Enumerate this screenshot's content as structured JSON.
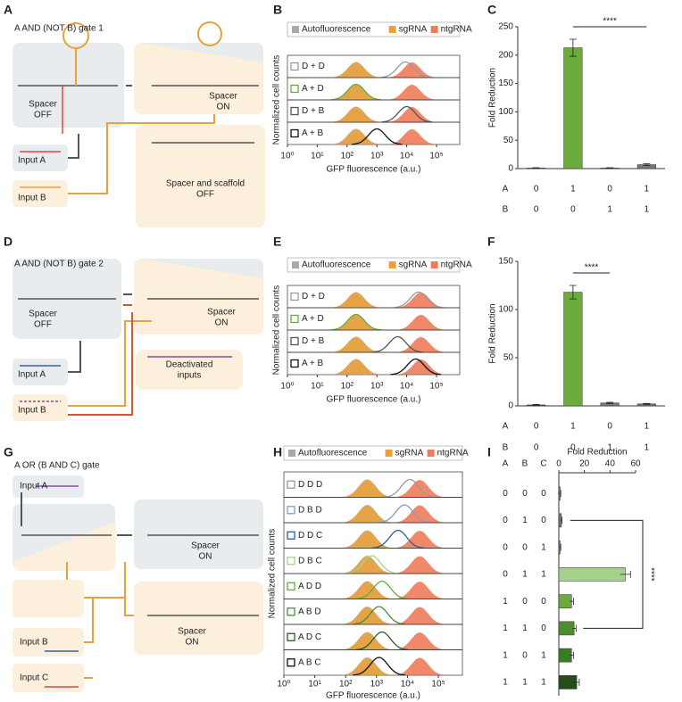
{
  "panel_letters": [
    "A",
    "B",
    "C",
    "D",
    "E",
    "F",
    "G",
    "H",
    "I"
  ],
  "diagrams": [
    {
      "title": "A AND (NOT B) gate 1",
      "boxes": [
        [
          "Spacer",
          "OFF"
        ],
        [
          "Spacer",
          "ON"
        ],
        [
          "Spacer and scaffold",
          "OFF"
        ],
        [
          "Input A"
        ],
        [
          "Input B"
        ]
      ]
    },
    {
      "title": "A AND (NOT B) gate 2",
      "boxes": [
        [
          "Spacer",
          "OFF"
        ],
        [
          "Spacer",
          "ON"
        ],
        [
          "Deactivated",
          "inputs"
        ],
        [
          "Input A"
        ],
        [
          "Input B"
        ]
      ]
    },
    {
      "title": "A OR (B AND C) gate",
      "boxes": [
        [
          "Input A"
        ],
        [
          "Spacer",
          "ON"
        ],
        [
          "Spacer",
          "ON"
        ],
        [
          "Input B"
        ],
        [
          "Input C"
        ]
      ]
    }
  ],
  "chart_data": [
    {
      "type": "density",
      "xscale": "log",
      "categories": [
        "D + D",
        "A + D",
        "D + B",
        "A + B"
      ],
      "category_colors": [
        "#9a9a9a",
        "#6aab3c",
        "#555555",
        "#111111"
      ],
      "sample_values": [
        9000,
        200,
        10000,
        1000
      ],
      "series": [
        {
          "name": "Autofluorescence",
          "color": "#a9a9a9",
          "values": [
            200,
            200,
            200,
            200
          ]
        },
        {
          "name": "sgRNA",
          "color": "#e9a23b",
          "values": [
            200,
            200,
            200,
            200
          ]
        },
        {
          "name": "ntgRNA",
          "color": "#ef7b59",
          "values": [
            15000,
            15000,
            15000,
            15000
          ]
        }
      ],
      "xlabel": "GFP fluorescence (a.u.)",
      "ylabel": "Normalized cell counts",
      "xlim": [
        1,
        600000
      ],
      "xticks": [
        {
          "value": 1,
          "label": "10⁰"
        },
        {
          "value": 10,
          "label": "10¹"
        },
        {
          "value": 100,
          "label": "10²"
        },
        {
          "value": 1000,
          "label": "10³"
        },
        {
          "value": 10000,
          "label": "10⁴"
        },
        {
          "value": 100000,
          "label": "10⁵"
        }
      ]
    },
    {
      "type": "bar",
      "values": [
        1,
        213,
        1,
        7
      ],
      "errors": [
        0.5,
        15,
        0.5,
        1.5
      ],
      "colors": [
        "#555555",
        "#6aab3c",
        "#555555",
        "#777777"
      ],
      "ylabel": "Fold Reduction",
      "ylim": [
        0,
        250
      ],
      "yticks": [
        0,
        50,
        100,
        150,
        200,
        250
      ],
      "rows": [
        {
          "name": "A",
          "values": [
            0,
            1,
            0,
            1
          ]
        },
        {
          "name": "B",
          "values": [
            0,
            0,
            1,
            1
          ]
        }
      ],
      "significance": {
        "label": "****",
        "between": [
          1,
          3
        ]
      }
    },
    {
      "type": "density",
      "xscale": "log",
      "categories": [
        "D + D",
        "A + D",
        "D + B",
        "A + B"
      ],
      "category_colors": [
        "#9a9a9a",
        "#6aab3c",
        "#555555",
        "#111111"
      ],
      "sample_values": [
        25000,
        200,
        5000,
        20000
      ],
      "series": [
        {
          "name": "Autofluorescence",
          "color": "#a9a9a9",
          "values": [
            200,
            200,
            200,
            200
          ]
        },
        {
          "name": "sgRNA",
          "color": "#e9a23b",
          "values": [
            200,
            200,
            200,
            200
          ]
        },
        {
          "name": "ntgRNA",
          "color": "#ef7b59",
          "values": [
            30000,
            30000,
            30000,
            30000
          ]
        }
      ],
      "xlabel": "GFP fluorescence (a.u.)",
      "ylabel": "Normalized cell counts",
      "xlim": [
        1,
        600000
      ],
      "xticks": [
        {
          "value": 1,
          "label": "10⁰"
        },
        {
          "value": 10,
          "label": "10¹"
        },
        {
          "value": 100,
          "label": "10²"
        },
        {
          "value": 1000,
          "label": "10³"
        },
        {
          "value": 10000,
          "label": "10⁴"
        },
        {
          "value": 100000,
          "label": "10⁵"
        }
      ]
    },
    {
      "type": "bar",
      "values": [
        1,
        118,
        3,
        2
      ],
      "errors": [
        0.5,
        7,
        0.7,
        0.5
      ],
      "colors": [
        "#555555",
        "#6aab3c",
        "#777777",
        "#777777"
      ],
      "ylabel": "Fold Reduction",
      "ylim": [
        0,
        150
      ],
      "yticks": [
        0,
        50,
        100,
        150
      ],
      "rows": [
        {
          "name": "A",
          "values": [
            0,
            1,
            0,
            1
          ]
        },
        {
          "name": "B",
          "values": [
            0,
            0,
            1,
            1
          ]
        }
      ],
      "significance": {
        "label": "****",
        "between": [
          1,
          2
        ]
      }
    },
    {
      "type": "density",
      "xscale": "log",
      "categories": [
        "D D D",
        "D B D",
        "D D C",
        "D B C",
        "A D D",
        "A B D",
        "A D C",
        "A B C"
      ],
      "category_colors": [
        "#9a9a9a",
        "#7f9fc4",
        "#2f5f9a",
        "#a5d28a",
        "#6aab3c",
        "#4e8c2f",
        "#2f5f25",
        "#111111"
      ],
      "sample_values": [
        12000,
        8000,
        5000,
        700,
        1500,
        1200,
        1500,
        1200
      ],
      "series": [
        {
          "name": "Autofluorescence",
          "color": "#a9a9a9",
          "values": [
            500,
            500,
            500,
            500,
            500,
            500,
            500,
            500
          ]
        },
        {
          "name": "sgRNA",
          "color": "#e9a23b",
          "values": [
            500,
            500,
            500,
            500,
            500,
            500,
            500,
            500
          ]
        },
        {
          "name": "ntgRNA",
          "color": "#ef7b59",
          "values": [
            25000,
            25000,
            25000,
            25000,
            25000,
            25000,
            25000,
            25000
          ]
        }
      ],
      "xlabel": "GFP fluorescence (a.u.)",
      "ylabel": "Normalized cell counts",
      "xlim": [
        1,
        600000
      ],
      "xticks": [
        {
          "value": 1,
          "label": "10⁰"
        },
        {
          "value": 10,
          "label": "10¹"
        },
        {
          "value": 100,
          "label": "10²"
        },
        {
          "value": 1000,
          "label": "10³"
        },
        {
          "value": 10000,
          "label": "10⁴"
        },
        {
          "value": 100000,
          "label": "10⁵"
        }
      ]
    },
    {
      "type": "barh",
      "columns": [
        "A",
        "B",
        "C"
      ],
      "rows": [
        [
          0,
          0,
          0
        ],
        [
          0,
          1,
          0
        ],
        [
          0,
          0,
          1
        ],
        [
          0,
          1,
          1
        ],
        [
          1,
          0,
          0
        ],
        [
          1,
          1,
          0
        ],
        [
          1,
          0,
          1
        ],
        [
          1,
          1,
          1
        ]
      ],
      "values": [
        1,
        2,
        1,
        52,
        10,
        12,
        10,
        14
      ],
      "errors": [
        0.5,
        0.5,
        0.5,
        4,
        1.5,
        1.5,
        1.5,
        2
      ],
      "colors": [
        "#777777",
        "#777777",
        "#777777",
        "#a5d28a",
        "#6aab3c",
        "#4e8c2f",
        "#3d7a26",
        "#264d17"
      ],
      "xlabel": "Fold Reduction",
      "xlim": [
        0,
        60
      ],
      "xticks": [
        0,
        20,
        40,
        60
      ],
      "significance": {
        "label": "****",
        "between": [
          1,
          5
        ]
      }
    }
  ]
}
